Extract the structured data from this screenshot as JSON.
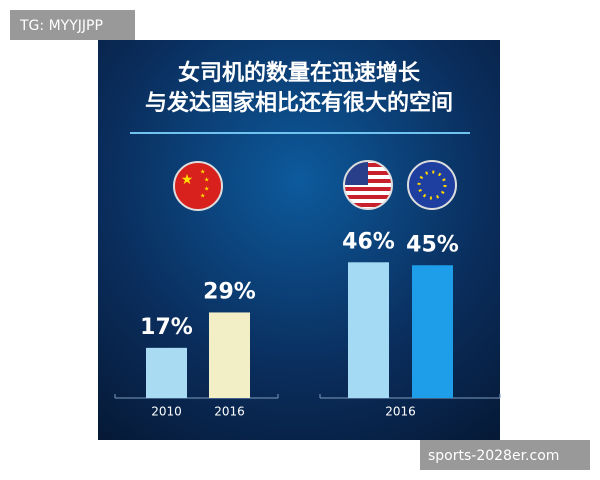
{
  "watermark": "TG: MYYJJPP",
  "footer": "sports-2028er.com",
  "chart_data": {
    "type": "bar",
    "title": [
      "女司机的数量在迅速增长",
      "与发达国家相比还有很大的空间"
    ],
    "groups": [
      {
        "categories": [
          "2010",
          "2016"
        ],
        "values": [
          17,
          29
        ],
        "value_labels": [
          "17%",
          "29%"
        ],
        "colors": [
          "#a9dcf3",
          "#f2efc6"
        ]
      },
      {
        "categories": [
          "2016",
          null
        ],
        "values": [
          46,
          45
        ],
        "value_labels": [
          "46%",
          "45%"
        ],
        "colors": [
          "#a4daf4",
          "#1e9ee8"
        ]
      }
    ]
  }
}
